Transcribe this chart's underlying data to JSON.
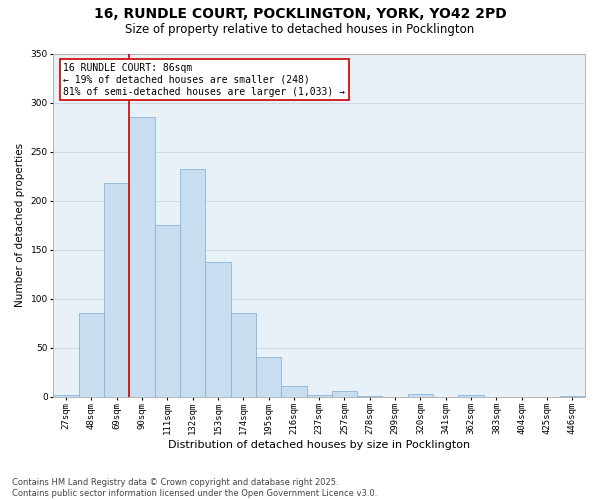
{
  "title_line1": "16, RUNDLE COURT, POCKLINGTON, YORK, YO42 2PD",
  "title_line2": "Size of property relative to detached houses in Pocklington",
  "xlabel": "Distribution of detached houses by size in Pocklington",
  "ylabel": "Number of detached properties",
  "categories": [
    "27sqm",
    "48sqm",
    "69sqm",
    "90sqm",
    "111sqm",
    "132sqm",
    "153sqm",
    "174sqm",
    "195sqm",
    "216sqm",
    "237sqm",
    "257sqm",
    "278sqm",
    "299sqm",
    "320sqm",
    "341sqm",
    "362sqm",
    "383sqm",
    "404sqm",
    "425sqm",
    "446sqm"
  ],
  "values": [
    2,
    85,
    218,
    285,
    175,
    232,
    137,
    85,
    40,
    11,
    2,
    6,
    1,
    0,
    3,
    0,
    2,
    0,
    0,
    0,
    1
  ],
  "bar_color": "#c9ddf0",
  "bar_edge_color": "#89b4d8",
  "grid_color": "#d0d8e0",
  "bg_color": "#e8f0f8",
  "vline_index": 3,
  "vline_color": "#cc0000",
  "annotation_text": "16 RUNDLE COURT: 86sqm\n← 19% of detached houses are smaller (248)\n81% of semi-detached houses are larger (1,033) →",
  "annotation_box_color": "#ffffff",
  "annotation_box_edge": "#cc0000",
  "ylim": [
    0,
    350
  ],
  "yticks": [
    0,
    50,
    100,
    150,
    200,
    250,
    300,
    350
  ],
  "footer_line1": "Contains HM Land Registry data © Crown copyright and database right 2025.",
  "footer_line2": "Contains public sector information licensed under the Open Government Licence v3.0.",
  "title_fontsize": 10,
  "subtitle_fontsize": 8.5,
  "ylabel_fontsize": 7.5,
  "xlabel_fontsize": 8,
  "tick_fontsize": 6.5,
  "footer_fontsize": 6,
  "annot_fontsize": 7
}
